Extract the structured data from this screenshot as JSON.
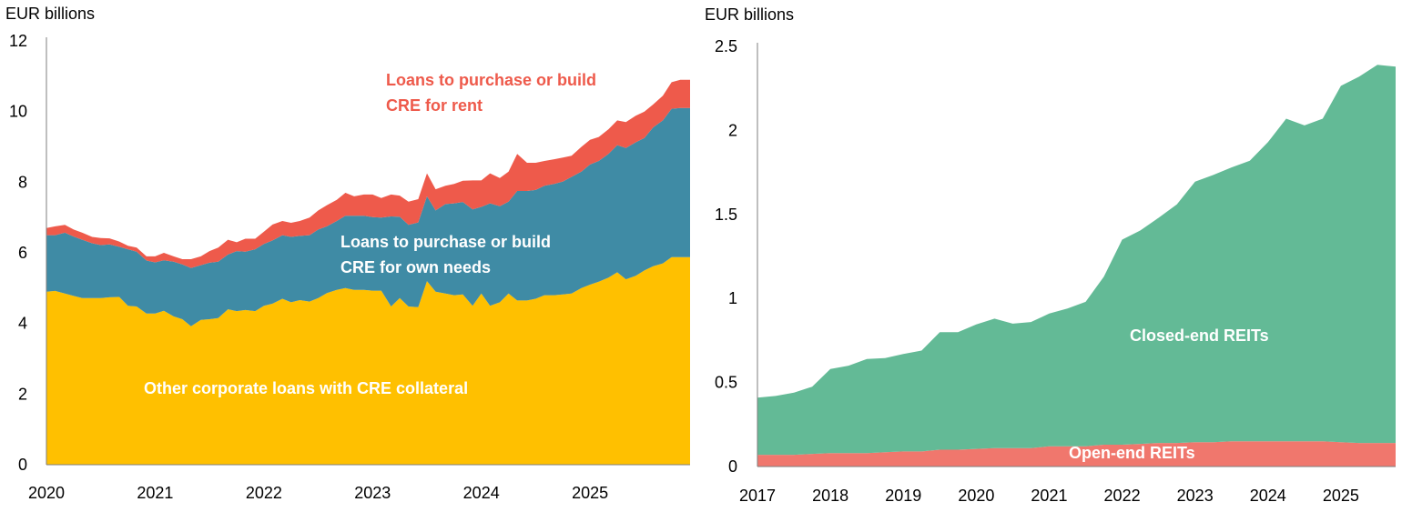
{
  "chart_data": [
    {
      "type": "area",
      "stacked": true,
      "ylabel": "EUR billions",
      "ylim": [
        0,
        12
      ],
      "yticks": [
        "0",
        "2",
        "4",
        "6",
        "8",
        "10",
        "12"
      ],
      "xlim": [
        2020,
        2025.92
      ],
      "xticks": [
        "2020",
        "2021",
        "2022",
        "2023",
        "2024",
        "2025"
      ],
      "x": [
        2020.0,
        2020.08,
        2020.17,
        2020.25,
        2020.33,
        2020.42,
        2020.5,
        2020.58,
        2020.67,
        2020.75,
        2020.83,
        2020.92,
        2021.0,
        2021.08,
        2021.17,
        2021.25,
        2021.33,
        2021.42,
        2021.5,
        2021.58,
        2021.67,
        2021.75,
        2021.83,
        2021.92,
        2022.0,
        2022.08,
        2022.17,
        2022.25,
        2022.33,
        2022.42,
        2022.5,
        2022.58,
        2022.67,
        2022.75,
        2022.83,
        2022.92,
        2023.0,
        2023.08,
        2023.17,
        2023.25,
        2023.33,
        2023.42,
        2023.5,
        2023.58,
        2023.67,
        2023.75,
        2023.83,
        2023.92,
        2024.0,
        2024.08,
        2024.17,
        2024.25,
        2024.33,
        2024.42,
        2024.5,
        2024.58,
        2024.67,
        2024.75,
        2024.83,
        2024.92,
        2025.0,
        2025.08,
        2025.17,
        2025.25,
        2025.33,
        2025.42,
        2025.5,
        2025.58,
        2025.67,
        2025.75,
        2025.83,
        2025.92
      ],
      "series": [
        {
          "name": "Other corporate loans with CRE collateral",
          "color": "#FFC000",
          "values": [
            4.9,
            4.92,
            4.85,
            4.78,
            4.72,
            4.72,
            4.72,
            4.74,
            4.75,
            4.5,
            4.48,
            4.28,
            4.28,
            4.36,
            4.2,
            4.12,
            3.92,
            4.1,
            4.12,
            4.15,
            4.4,
            4.35,
            4.38,
            4.35,
            4.5,
            4.56,
            4.7,
            4.6,
            4.66,
            4.62,
            4.72,
            4.86,
            4.95,
            5.0,
            4.95,
            4.95,
            4.93,
            4.93,
            4.48,
            4.72,
            4.48,
            4.46,
            5.2,
            4.9,
            4.85,
            4.8,
            4.82,
            4.5,
            4.85,
            4.5,
            4.6,
            4.85,
            4.65,
            4.65,
            4.7,
            4.8,
            4.8,
            4.82,
            4.85,
            5.0,
            5.1,
            5.18,
            5.3,
            5.45,
            5.25,
            5.35,
            5.5,
            5.62,
            5.7,
            5.88,
            5.88,
            5.88
          ]
        },
        {
          "name": "Loans to purchase or build CRE for own needs",
          "color": "#3F8BA5",
          "values": [
            1.6,
            1.58,
            1.72,
            1.68,
            1.65,
            1.55,
            1.5,
            1.5,
            1.42,
            1.6,
            1.55,
            1.5,
            1.45,
            1.43,
            1.55,
            1.55,
            1.65,
            1.55,
            1.6,
            1.6,
            1.55,
            1.7,
            1.65,
            1.75,
            1.75,
            1.79,
            1.8,
            1.85,
            1.82,
            1.88,
            1.94,
            1.89,
            1.95,
            2.05,
            2.1,
            2.1,
            2.08,
            2.07,
            2.55,
            2.3,
            2.31,
            2.4,
            2.4,
            2.3,
            2.53,
            2.6,
            2.62,
            2.73,
            2.45,
            2.9,
            2.72,
            2.6,
            3.1,
            3.1,
            3.08,
            3.1,
            3.15,
            3.2,
            3.3,
            3.3,
            3.4,
            3.42,
            3.5,
            3.6,
            3.72,
            3.78,
            3.75,
            3.93,
            4.05,
            4.2,
            4.22,
            4.22
          ]
        },
        {
          "name": "Loans to purchase or build CRE for rent",
          "color": "#EE5A4B",
          "values": [
            0.2,
            0.25,
            0.22,
            0.2,
            0.2,
            0.18,
            0.2,
            0.17,
            0.15,
            0.1,
            0.12,
            0.12,
            0.17,
            0.21,
            0.15,
            0.15,
            0.25,
            0.25,
            0.33,
            0.4,
            0.42,
            0.25,
            0.37,
            0.3,
            0.35,
            0.45,
            0.4,
            0.4,
            0.42,
            0.5,
            0.54,
            0.6,
            0.6,
            0.65,
            0.55,
            0.6,
            0.64,
            0.55,
            0.62,
            0.6,
            0.66,
            0.66,
            0.65,
            0.6,
            0.52,
            0.55,
            0.6,
            0.82,
            0.75,
            0.85,
            0.8,
            0.85,
            1.05,
            0.8,
            0.77,
            0.7,
            0.7,
            0.68,
            0.6,
            0.7,
            0.7,
            0.68,
            0.7,
            0.7,
            0.73,
            0.75,
            0.75,
            0.65,
            0.7,
            0.75,
            0.8,
            0.8
          ]
        }
      ],
      "annotations": [
        {
          "text": [
            "Loans to purchase or build",
            "CRE for rent"
          ],
          "color": "#EE5A4B"
        },
        {
          "text": [
            "Loans to purchase or build",
            "CRE for own needs"
          ],
          "color": "#FFFFFF"
        },
        {
          "text": [
            "Other corporate loans with CRE collateral"
          ],
          "color": "#FFFFFF"
        }
      ]
    },
    {
      "type": "area",
      "stacked": true,
      "ylabel": "EUR billions",
      "ylim": [
        0,
        2.5
      ],
      "yticks": [
        "0",
        "0.5",
        "1",
        "1.5",
        "2",
        "2.5"
      ],
      "xlim": [
        2017,
        2025.75
      ],
      "xticks": [
        "2017",
        "2018",
        "2019",
        "2020",
        "2021",
        "2022",
        "2023",
        "2024",
        "2025"
      ],
      "x": [
        2017.0,
        2017.25,
        2017.5,
        2017.75,
        2018.0,
        2018.25,
        2018.5,
        2018.75,
        2019.0,
        2019.25,
        2019.5,
        2019.75,
        2020.0,
        2020.25,
        2020.5,
        2020.75,
        2021.0,
        2021.25,
        2021.5,
        2021.75,
        2022.0,
        2022.25,
        2022.5,
        2022.75,
        2023.0,
        2023.25,
        2023.5,
        2023.75,
        2024.0,
        2024.25,
        2024.5,
        2024.75,
        2025.0,
        2025.25,
        2025.5,
        2025.75
      ],
      "series": [
        {
          "name": "Open-end REITs",
          "color": "#F0776D",
          "values": [
            0.07,
            0.07,
            0.07,
            0.075,
            0.08,
            0.08,
            0.08,
            0.085,
            0.09,
            0.09,
            0.1,
            0.1,
            0.105,
            0.11,
            0.11,
            0.11,
            0.12,
            0.12,
            0.12,
            0.13,
            0.13,
            0.135,
            0.14,
            0.14,
            0.145,
            0.145,
            0.15,
            0.15,
            0.15,
            0.15,
            0.15,
            0.15,
            0.145,
            0.14,
            0.14,
            0.14
          ]
        },
        {
          "name": "Closed-end REITs",
          "color": "#63BA96",
          "values": [
            0.34,
            0.35,
            0.37,
            0.4,
            0.5,
            0.52,
            0.56,
            0.56,
            0.58,
            0.6,
            0.7,
            0.7,
            0.74,
            0.77,
            0.74,
            0.75,
            0.79,
            0.82,
            0.86,
            1.0,
            1.22,
            1.27,
            1.34,
            1.42,
            1.55,
            1.59,
            1.63,
            1.67,
            1.78,
            1.92,
            1.88,
            1.92,
            2.12,
            2.18,
            2.25,
            2.24
          ]
        }
      ],
      "annotations": [
        {
          "text": [
            "Closed-end REITs"
          ],
          "color": "#FFFFFF"
        },
        {
          "text": [
            "Open-end REITs"
          ],
          "color": "#FFFFFF"
        }
      ]
    }
  ]
}
